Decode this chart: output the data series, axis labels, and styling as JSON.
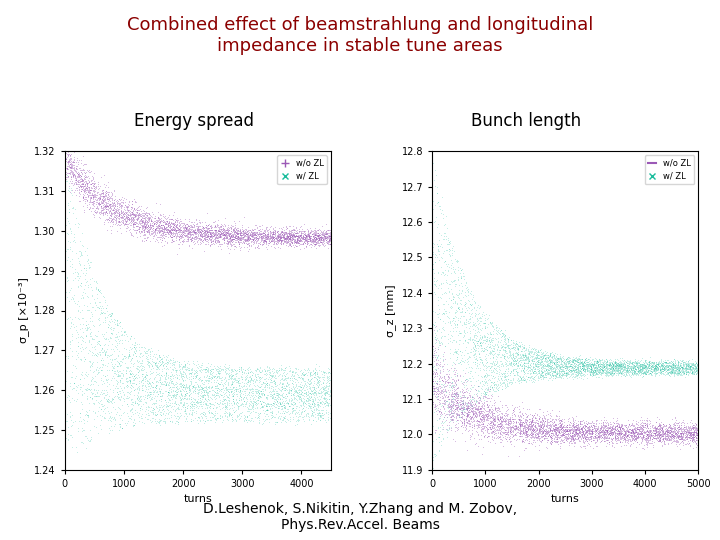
{
  "title": "Combined effect of beamstrahlung and longitudinal\nimpedance in stable tune areas",
  "title_color": "#8B0000",
  "subtitle_energy": "Energy spread",
  "subtitle_bunch": "Bunch length",
  "footer": "D.Leshenok, S.Nikitin, Y.Zhang and M. Zobov,\nPhys.Rev.Accel. Beams",
  "bg_color": "#ffffff",
  "left_ylabel": "σ_p [×10⁻³]",
  "left_xlabel": "turns",
  "left_ylim": [
    1.24,
    1.32
  ],
  "left_yticks": [
    1.24,
    1.25,
    1.26,
    1.27,
    1.28,
    1.29,
    1.3,
    1.31,
    1.32
  ],
  "left_xlim": [
    0,
    4500
  ],
  "left_xticks": [
    0,
    1000,
    2000,
    3000,
    4000
  ],
  "right_ylabel": "σ_z [mm]",
  "right_xlabel": "turns",
  "right_ylim": [
    11.9,
    12.8
  ],
  "right_yticks": [
    11.9,
    12.0,
    12.1,
    12.2,
    12.3,
    12.4,
    12.5,
    12.6,
    12.7,
    12.8
  ],
  "right_xlim": [
    0,
    5000
  ],
  "right_xticks": [
    0,
    1000,
    2000,
    3000,
    4000,
    5000
  ],
  "color_wo_zl": "#9b59b6",
  "color_w_zl": "#1abc9c",
  "legend_wo_zl": "w/o ZL",
  "legend_w_zl": "w/ ZL",
  "seed": 42
}
